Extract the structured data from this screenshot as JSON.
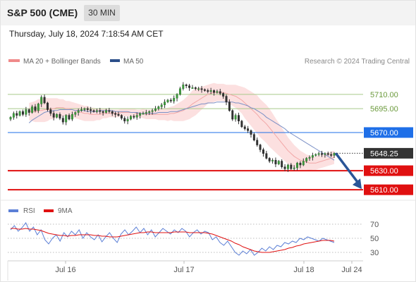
{
  "header": {
    "title": "S&P 500 (CME)",
    "timeframe": "30 MIN"
  },
  "datetime": "Thursday, July 18, 2024 7:18:54 AM CET",
  "legend": {
    "bollinger": {
      "label": "MA 20 + Bollinger Bands",
      "color": "#f08a8a"
    },
    "ma50": {
      "label": "MA 50",
      "color": "#2b4f8a"
    }
  },
  "copyright": "Research © 2024 Trading Central",
  "chart_data": [
    {
      "type": "candlestick",
      "x_labels": [
        "Jul 16",
        "Jul 17",
        "Jul 18",
        "Jul 24"
      ],
      "ylim": [
        5602,
        5735
      ],
      "levels": [
        {
          "value": "5710.00",
          "kind": "resistance",
          "color": "#a9c98a"
        },
        {
          "value": "5695.00",
          "kind": "resistance",
          "color": "#a9c98a"
        },
        {
          "value": "5670.00",
          "kind": "pivot",
          "color": "#1e6fe8"
        },
        {
          "value": "5648.25",
          "kind": "last",
          "color": "#333333"
        },
        {
          "value": "5630.00",
          "kind": "support",
          "color": "#e01010"
        },
        {
          "value": "5610.00",
          "kind": "support",
          "color": "#e01010"
        }
      ],
      "close": [
        5686,
        5690,
        5688,
        5692,
        5689,
        5694,
        5691,
        5697,
        5693,
        5700,
        5707,
        5701,
        5694,
        5690,
        5686,
        5689,
        5685,
        5681,
        5688,
        5684,
        5689,
        5691,
        5693,
        5694,
        5695,
        5694,
        5693,
        5692,
        5693,
        5692,
        5691,
        5693,
        5692,
        5690,
        5689,
        5688,
        5685,
        5682,
        5684,
        5687,
        5686,
        5688,
        5690,
        5690,
        5691,
        5692,
        5693,
        5695,
        5697,
        5699,
        5702,
        5704,
        5703,
        5706,
        5710,
        5716,
        5720,
        5719,
        5717,
        5717,
        5716,
        5716,
        5715,
        5714,
        5713,
        5714,
        5712,
        5713,
        5711,
        5708,
        5702,
        5693,
        5684,
        5688,
        5682,
        5676,
        5674,
        5672,
        5668,
        5662,
        5657,
        5652,
        5648,
        5643,
        5640,
        5641,
        5637,
        5640,
        5634,
        5632,
        5636,
        5632,
        5633,
        5638,
        5636,
        5640,
        5643,
        5644,
        5646,
        5647,
        5648,
        5647,
        5648,
        5647,
        5646,
        5648.25
      ],
      "ma50": [
        5680,
        5683,
        5685,
        5687,
        5689,
        5691,
        5692,
        5692,
        5693,
        5693,
        5694,
        5694,
        5694,
        5694,
        5694,
        5693,
        5693,
        5693,
        5693,
        5692,
        5692,
        5692,
        5692,
        5693,
        5693,
        5693,
        5693,
        5693,
        5692,
        5692,
        5692,
        5692,
        5692,
        5691,
        5691,
        5691,
        5690,
        5690,
        5690,
        5690,
        5690,
        5690,
        5691,
        5691,
        5691,
        5691,
        5692,
        5692,
        5692,
        5693,
        5694,
        5695,
        5696,
        5697,
        5698,
        5699,
        5700,
        5700,
        5701,
        5701,
        5701,
        5702,
        5702,
        5702,
        5702,
        5702,
        5702,
        5701,
        5701,
        5700,
        5699,
        5698,
        5696,
        5695,
        5693,
        5691,
        5689,
        5686,
        5684,
        5682,
        5680,
        5678,
        5676,
        5674,
        5671,
        5669,
        5667,
        5665,
        5663,
        5661,
        5659,
        5657,
        5655,
        5653,
        5651,
        5649,
        5647,
        5645,
        5643,
        5641
      ],
      "ma20": [
        5692,
        5692,
        5692,
        5693,
        5693,
        5694,
        5694,
        5695,
        5695,
        5696,
        5696,
        5696,
        5695,
        5695,
        5694,
        5693,
        5692,
        5691,
        5690,
        5690,
        5689,
        5689,
        5689,
        5689,
        5690,
        5690,
        5690,
        5690,
        5690,
        5690,
        5691,
        5691,
        5691,
        5691,
        5691,
        5690,
        5690,
        5690,
        5689,
        5689,
        5689,
        5689,
        5689,
        5689,
        5689,
        5689,
        5690,
        5690,
        5691,
        5692,
        5693,
        5695,
        5697,
        5700,
        5702,
        5704,
        5706,
        5708,
        5710,
        5711,
        5712,
        5712,
        5712,
        5712,
        5711,
        5710,
        5709,
        5708,
        5706,
        5704,
        5701,
        5698,
        5695,
        5692,
        5689,
        5685,
        5682,
        5679,
        5675,
        5671,
        5667,
        5663,
        5659,
        5655,
        5651,
        5648,
        5645,
        5643,
        5641,
        5640,
        5639,
        5638,
        5638,
        5638,
        5639,
        5640,
        5641,
        5642,
        5643,
        5644
      ],
      "bb_width": [
        9,
        10,
        11,
        12,
        12,
        13,
        12,
        11,
        11,
        10,
        9,
        9,
        8,
        8,
        8,
        8,
        8,
        8,
        8,
        8,
        7,
        7,
        6,
        6,
        5,
        5,
        4,
        4,
        4,
        4,
        4,
        4,
        4,
        4,
        4,
        4,
        4,
        5,
        5,
        5,
        5,
        5,
        6,
        6,
        6,
        7,
        7,
        8,
        9,
        10,
        11,
        12,
        13,
        14,
        14,
        13,
        12,
        11,
        10,
        10,
        10,
        9,
        9,
        9,
        9,
        10,
        11,
        12,
        13,
        14,
        16,
        17,
        18,
        19,
        20,
        20,
        20,
        20,
        20,
        19,
        18,
        17,
        16,
        15,
        14,
        13,
        12,
        11,
        10,
        9,
        8,
        8,
        7,
        7,
        7,
        7,
        7,
        7,
        7,
        7
      ],
      "series": [
        {
          "name": "MA 20 + Bollinger Bands"
        },
        {
          "name": "MA 50"
        }
      ]
    },
    {
      "type": "line",
      "x_labels": [
        "Jul 16",
        "Jul 17",
        "Jul 18",
        "Jul 24"
      ],
      "ylim": [
        20,
        80
      ],
      "yticks": [
        "70",
        "50",
        "30"
      ],
      "series": [
        {
          "name": "RSI",
          "color": "#5b7fd6",
          "values": [
            62,
            68,
            60,
            65,
            72,
            60,
            66,
            55,
            62,
            48,
            42,
            50,
            55,
            46,
            58,
            52,
            60,
            55,
            62,
            50,
            58,
            52,
            48,
            55,
            45,
            52,
            58,
            50,
            44,
            56,
            62,
            55,
            60,
            66,
            58,
            64,
            55,
            62,
            52,
            58,
            64,
            60,
            56,
            62,
            58,
            64,
            60,
            52,
            58,
            62,
            56,
            60,
            58,
            48,
            52,
            44,
            40,
            46,
            38,
            30,
            26,
            32,
            28,
            34,
            26,
            30,
            36,
            32,
            38,
            34,
            40,
            38,
            44,
            42,
            46,
            44,
            50,
            48,
            52,
            50,
            48,
            46,
            50,
            48,
            46,
            44
          ]
        },
        {
          "name": "9MA",
          "color": "#e01010",
          "values": [
            64,
            64,
            63,
            63,
            64,
            63,
            63,
            62,
            61,
            59,
            57,
            56,
            55,
            54,
            54,
            53,
            54,
            54,
            55,
            55,
            55,
            55,
            54,
            54,
            53,
            53,
            52,
            52,
            52,
            53,
            54,
            55,
            56,
            57,
            58,
            58,
            59,
            59,
            58,
            58,
            58,
            58,
            58,
            59,
            59,
            59,
            59,
            58,
            58,
            58,
            58,
            58,
            57,
            56,
            54,
            52,
            50,
            48,
            46,
            43,
            41,
            38,
            36,
            34,
            32,
            31,
            30,
            30,
            30,
            31,
            32,
            33,
            34,
            36,
            37,
            39,
            40,
            42,
            43,
            44,
            45,
            46,
            47,
            47,
            47,
            46
          ]
        }
      ]
    }
  ]
}
